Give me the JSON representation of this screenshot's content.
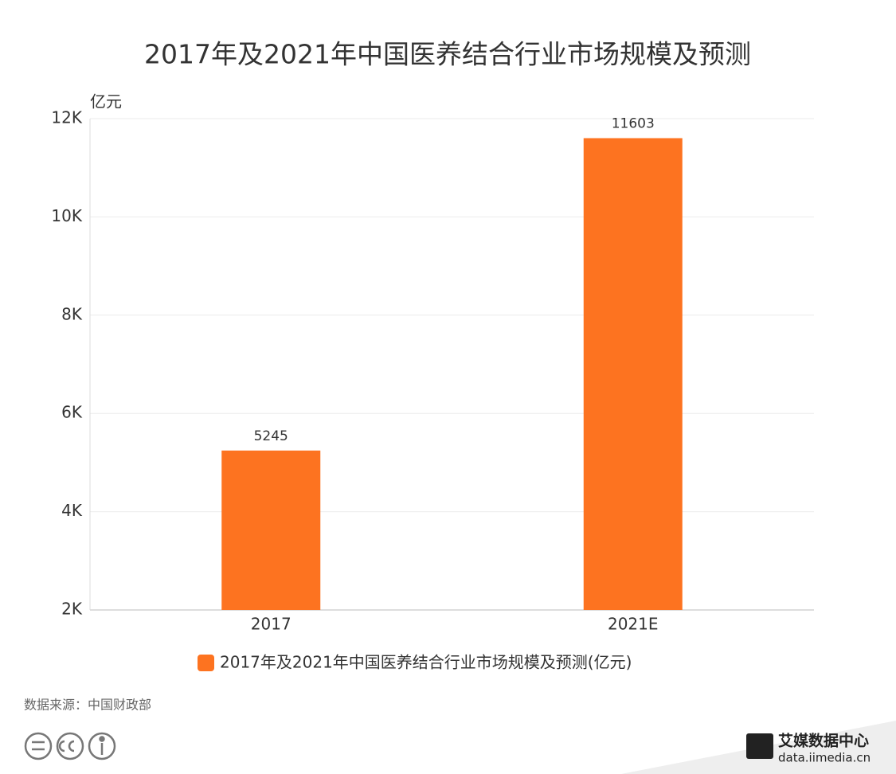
{
  "chart_data": {
    "type": "bar",
    "title": "2017年及2021年中国医养结合行业市场规模及预测",
    "y_unit": "亿元",
    "categories": [
      "2017",
      "2021E"
    ],
    "series": [
      {
        "name": "2017年及2021年中国医养结合行业市场规模及预测(亿元)",
        "color": "#fd7320",
        "values": [
          5245,
          11603
        ]
      }
    ],
    "ylim": [
      2000,
      12000
    ],
    "yticks": [
      {
        "value": 2000,
        "label": "2K"
      },
      {
        "value": 4000,
        "label": "4K"
      },
      {
        "value": 6000,
        "label": "6K"
      },
      {
        "value": 8000,
        "label": "8K"
      },
      {
        "value": 10000,
        "label": "10K"
      },
      {
        "value": 12000,
        "label": "12K"
      }
    ],
    "grid": true,
    "legend": "bottom"
  },
  "source": "数据来源：中国财政部",
  "logo": {
    "name": "艾媒数据中心",
    "url": "data.iimedia.cn"
  }
}
